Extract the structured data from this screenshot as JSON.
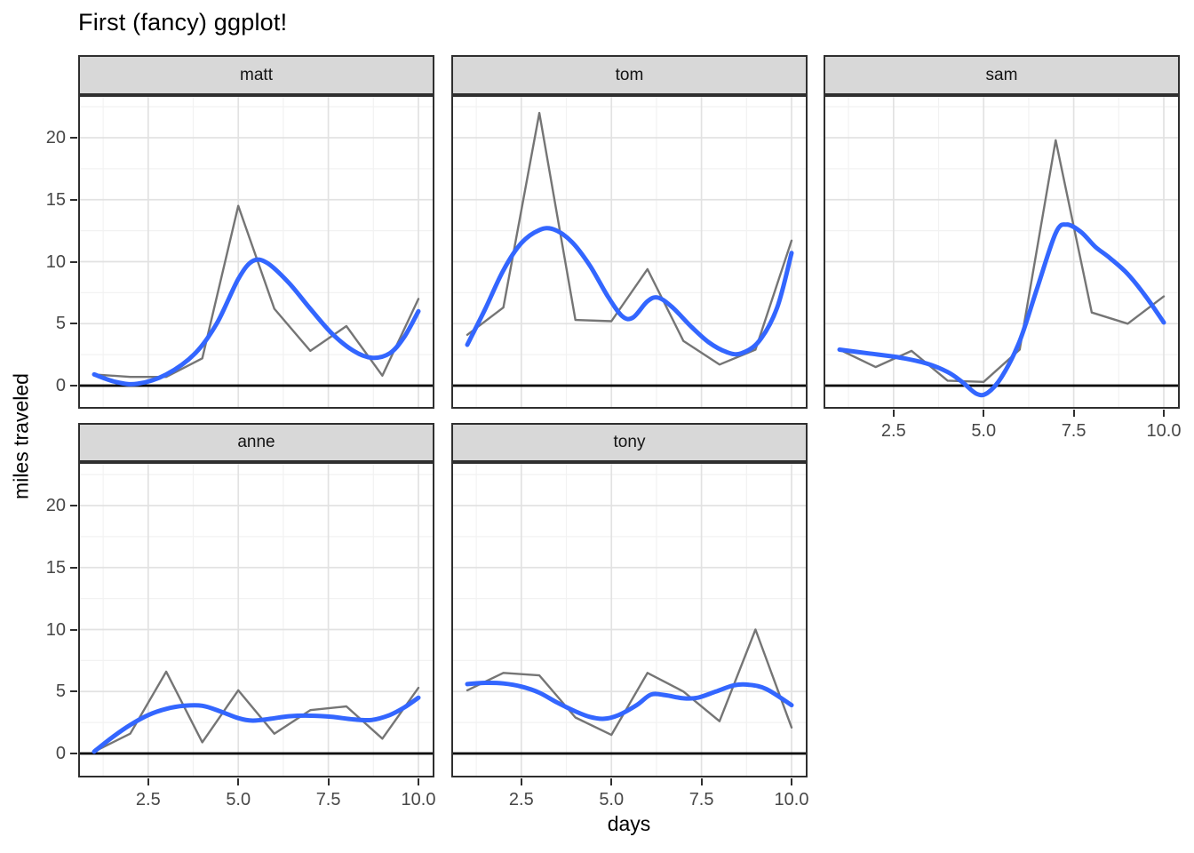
{
  "title": "First (fancy) ggplot!",
  "axes": {
    "x_label": "days",
    "y_label": "miles traveled",
    "x_ticks": [
      "2.5",
      "5.0",
      "7.5",
      "10.0"
    ],
    "x_tick_values": [
      2.5,
      5.0,
      7.5,
      10.0
    ],
    "y_ticks": [
      "0",
      "5",
      "10",
      "15",
      "20"
    ],
    "y_tick_values": [
      0,
      5,
      10,
      15,
      20
    ]
  },
  "chart_data": {
    "type": "line",
    "title": "First (fancy) ggplot!",
    "xlabel": "days",
    "ylabel": "miles traveled",
    "x": [
      1,
      2,
      3,
      4,
      5,
      6,
      7,
      8,
      9,
      10
    ],
    "xlim": [
      0.55,
      10.45
    ],
    "ylim": [
      -1.86,
      23.44
    ],
    "grid": {
      "x_major": [
        2.5,
        5.0,
        7.5,
        10.0
      ],
      "x_minor": [
        1.25,
        3.75,
        6.25,
        8.75
      ],
      "y_major": [
        0,
        5,
        10,
        15,
        20
      ],
      "y_minor": [
        2.5,
        7.5,
        12.5,
        17.5,
        22.5
      ]
    },
    "zero_line_y": 0,
    "legend": "none",
    "facets": [
      {
        "label": "matt",
        "row": 0,
        "col": 0,
        "axis_y": true,
        "axis_x": false,
        "raw": [
          0.9,
          0.7,
          0.7,
          2.2,
          14.5,
          6.2,
          2.8,
          4.8,
          0.8,
          7.0
        ],
        "smooth": [
          [
            1,
            0.9
          ],
          [
            1.6,
            0.3
          ],
          [
            2.2,
            0.15
          ],
          [
            3,
            0.9
          ],
          [
            3.8,
            2.6
          ],
          [
            4.4,
            5.0
          ],
          [
            5,
            8.6
          ],
          [
            5.4,
            10.05
          ],
          [
            5.8,
            9.9
          ],
          [
            6.4,
            8.3
          ],
          [
            7,
            6.2
          ],
          [
            7.6,
            4.2
          ],
          [
            8.2,
            2.8
          ],
          [
            8.7,
            2.25
          ],
          [
            9.2,
            2.6
          ],
          [
            9.6,
            3.9
          ],
          [
            10,
            6.0
          ]
        ]
      },
      {
        "label": "tom",
        "row": 0,
        "col": 1,
        "axis_y": false,
        "axis_x": false,
        "raw": [
          4.1,
          6.3,
          22.0,
          5.3,
          5.2,
          9.4,
          3.6,
          1.7,
          2.9,
          11.7
        ],
        "smooth": [
          [
            1,
            3.3
          ],
          [
            1.5,
            6.2
          ],
          [
            2,
            9.3
          ],
          [
            2.5,
            11.5
          ],
          [
            3,
            12.55
          ],
          [
            3.4,
            12.6
          ],
          [
            3.9,
            11.6
          ],
          [
            4.4,
            9.7
          ],
          [
            4.9,
            7.2
          ],
          [
            5.3,
            5.6
          ],
          [
            5.6,
            5.5
          ],
          [
            6,
            6.8
          ],
          [
            6.3,
            7.1
          ],
          [
            6.7,
            6.3
          ],
          [
            7.2,
            4.8
          ],
          [
            7.7,
            3.5
          ],
          [
            8.2,
            2.7
          ],
          [
            8.6,
            2.6
          ],
          [
            9.1,
            3.6
          ],
          [
            9.6,
            6.3
          ],
          [
            10,
            10.7
          ]
        ]
      },
      {
        "label": "sam",
        "row": 0,
        "col": 2,
        "axis_y": false,
        "axis_x": true,
        "raw": [
          2.9,
          1.5,
          2.8,
          0.4,
          0.3,
          2.9,
          19.8,
          5.9,
          5.0,
          7.2
        ],
        "smooth": [
          [
            1,
            2.9
          ],
          [
            1.8,
            2.6
          ],
          [
            2.6,
            2.3
          ],
          [
            3.4,
            1.8
          ],
          [
            4,
            1.1
          ],
          [
            4.4,
            0.3
          ],
          [
            4.8,
            -0.65
          ],
          [
            5.1,
            -0.6
          ],
          [
            5.5,
            0.7
          ],
          [
            6,
            3.6
          ],
          [
            6.5,
            8.0
          ],
          [
            7,
            12.3
          ],
          [
            7.3,
            13.0
          ],
          [
            7.7,
            12.4
          ],
          [
            8.1,
            11.2
          ],
          [
            8.5,
            10.3
          ],
          [
            9,
            9.0
          ],
          [
            9.5,
            7.2
          ],
          [
            10,
            5.1
          ]
        ]
      },
      {
        "label": "anne",
        "row": 1,
        "col": 0,
        "axis_y": true,
        "axis_x": true,
        "raw": [
          0.15,
          1.6,
          6.6,
          0.9,
          5.1,
          1.6,
          3.5,
          3.8,
          1.2,
          5.3
        ],
        "smooth": [
          [
            1,
            0.15
          ],
          [
            1.5,
            1.3
          ],
          [
            2,
            2.3
          ],
          [
            2.5,
            3.1
          ],
          [
            3,
            3.6
          ],
          [
            3.5,
            3.85
          ],
          [
            4,
            3.85
          ],
          [
            4.5,
            3.4
          ],
          [
            5,
            2.85
          ],
          [
            5.4,
            2.65
          ],
          [
            5.9,
            2.8
          ],
          [
            6.4,
            3.0
          ],
          [
            7,
            3.05
          ],
          [
            7.6,
            2.95
          ],
          [
            8.2,
            2.75
          ],
          [
            8.7,
            2.7
          ],
          [
            9.2,
            3.1
          ],
          [
            9.6,
            3.7
          ],
          [
            10,
            4.5
          ]
        ]
      },
      {
        "label": "tony",
        "row": 1,
        "col": 1,
        "axis_y": false,
        "axis_x": true,
        "raw": [
          5.1,
          6.5,
          6.3,
          2.9,
          1.5,
          6.5,
          5.0,
          2.6,
          10.0,
          2.1
        ],
        "smooth": [
          [
            1,
            5.6
          ],
          [
            1.5,
            5.7
          ],
          [
            2,
            5.65
          ],
          [
            2.5,
            5.4
          ],
          [
            3,
            4.9
          ],
          [
            3.5,
            4.1
          ],
          [
            4,
            3.4
          ],
          [
            4.4,
            2.95
          ],
          [
            4.8,
            2.8
          ],
          [
            5.2,
            3.1
          ],
          [
            5.7,
            3.9
          ],
          [
            6.1,
            4.75
          ],
          [
            6.5,
            4.7
          ],
          [
            7,
            4.45
          ],
          [
            7.4,
            4.5
          ],
          [
            7.9,
            5.0
          ],
          [
            8.4,
            5.5
          ],
          [
            8.8,
            5.55
          ],
          [
            9.3,
            5.2
          ],
          [
            10,
            3.9
          ]
        ]
      }
    ],
    "colors": {
      "smooth_line": "#3366FF",
      "raw_line": "#757575",
      "zero_line": "#000000",
      "grid_major": "#e2e2e2",
      "grid_minor": "#f2f2f2",
      "panel_border": "#2f2f2f",
      "strip_bg": "#d8d8d8",
      "axis_text": "#474747"
    }
  }
}
